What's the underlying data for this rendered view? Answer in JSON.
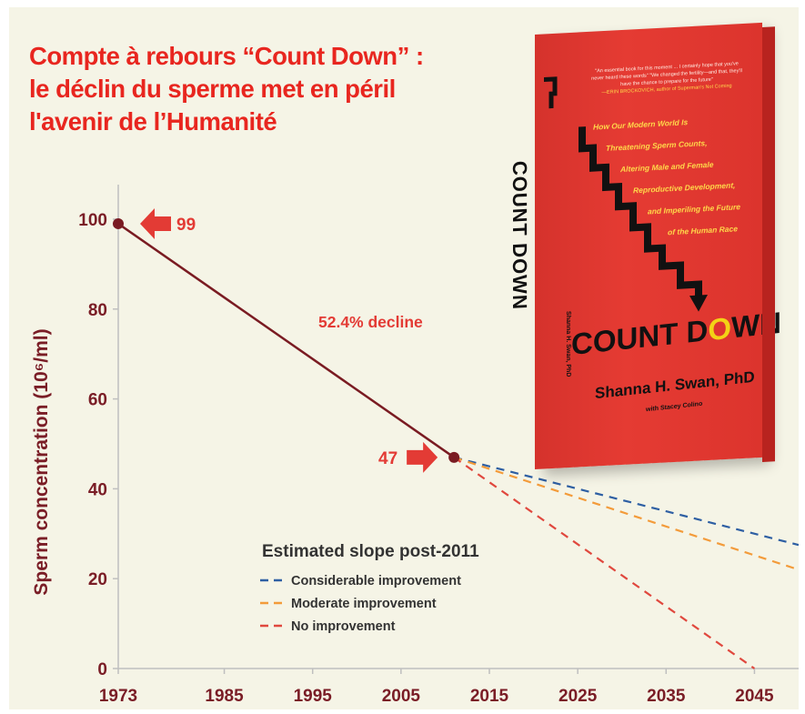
{
  "headline": {
    "lines": [
      "Compte à rebours “Count Down” :",
      "le déclin du sperme met en péril",
      "l'avenir de l’Humanité"
    ]
  },
  "book": {
    "blurb": "\"An essential book for this moment ... I certainly hope that you've never heard these words\" \"We changed the fertility—and that, they'll have the chance to prepare for the future\"",
    "blurb_credit": "—ERIN BROCKOVICH, author of Superman's Not Coming",
    "spine_title": "COUNT DOWN",
    "spine_author": "Shanna H. Swan, PhD",
    "subtitle_lines": [
      "How Our Modern World Is",
      "Threatening Sperm Counts,",
      "Altering Male and Female",
      "Reproductive Development,",
      "and Imperiling the Future",
      "of the Human Race"
    ],
    "title_pre": "COUNT D",
    "title_o": "O",
    "title_post": "WN",
    "author": "Shanna H. Swan, PhD",
    "coauthor": "with Stacey Colino"
  },
  "colors": {
    "headline": "#e8261f",
    "measured_line": "#7a1b22",
    "annotation": "#e33b35",
    "axis_text": "#7a1d26",
    "considerable": "#2e5fa3",
    "moderate": "#f39b3a",
    "none": "#e0483e"
  },
  "chart_data": {
    "type": "line",
    "ylabel": "Sperm concentration (10⁶/ml)",
    "xlim": [
      1973,
      2050
    ],
    "ylim": [
      0,
      100
    ],
    "x_ticks": [
      1973,
      1985,
      1995,
      2005,
      2015,
      2025,
      2035,
      2045
    ],
    "y_ticks": [
      0,
      20,
      40,
      60,
      80,
      100
    ],
    "series": [
      {
        "key": "measured",
        "style": "solid",
        "color": "#7a1b22",
        "points": [
          [
            1973,
            99
          ],
          [
            2011,
            47
          ]
        ]
      },
      {
        "key": "considerable",
        "name": "Considerable improvement",
        "style": "dashed",
        "color": "#2e5fa3",
        "points": [
          [
            2011,
            47
          ],
          [
            2050,
            27.5
          ]
        ]
      },
      {
        "key": "moderate",
        "name": "Moderate improvement",
        "style": "dashed",
        "color": "#f39b3a",
        "points": [
          [
            2011,
            47
          ],
          [
            2050,
            22
          ]
        ]
      },
      {
        "key": "none",
        "name": "No improvement",
        "style": "dashed",
        "color": "#e0483e",
        "points": [
          [
            2011,
            47
          ],
          [
            2045,
            0
          ]
        ]
      }
    ],
    "annotations": {
      "start_value": "99",
      "end_value": "47",
      "decline": "52.4% decline"
    },
    "legend": {
      "title": "Estimated slope post-2011",
      "position": "bottom-center"
    }
  }
}
